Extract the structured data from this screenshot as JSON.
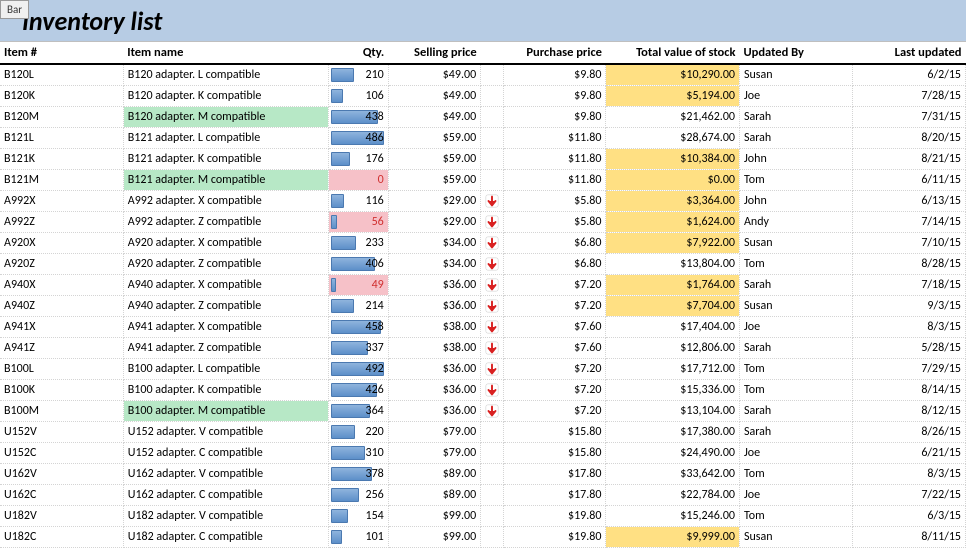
{
  "bar_label": "Bar",
  "title": "Inventory list",
  "columns": {
    "item": "Item #",
    "name": "Item name",
    "qty": "Qty.",
    "sell": "Selling price",
    "purch": "Purchase price",
    "total": "Total value of stock",
    "updated_by": "Updated By",
    "last_updated": "Last updated"
  },
  "style": {
    "max_qty": 500,
    "header_bg": "#b7cce4",
    "green_hl": "#b7e8c6",
    "yellow_hl": "#ffe083",
    "pink_bg": "#f6c1c8",
    "bar_gradient": [
      "#8fb4dd",
      "#5d8fc9"
    ],
    "red_text": "#d03030",
    "arrow_color": "#d92121",
    "title_fontsize": 26,
    "title_italic": true
  },
  "rows": [
    {
      "item": "B120L",
      "name": "B120 adapter. L compatible",
      "qty": 210,
      "sell": "$49.00",
      "purch": "$9.80",
      "total": "$10,290.00",
      "total_hl": true,
      "by": "Susan",
      "date": "6/2/15"
    },
    {
      "item": "B120K",
      "name": "B120 adapter. K compatible",
      "qty": 106,
      "sell": "$49.00",
      "purch": "$9.80",
      "total": "$5,194.00",
      "total_hl": true,
      "by": "Joe",
      "date": "7/28/15"
    },
    {
      "item": "B120M",
      "name": "B120 adapter. M compatible",
      "name_hl": true,
      "qty": 438,
      "sell": "$49.00",
      "purch": "$9.80",
      "total": "$21,462.00",
      "by": "Sarah",
      "date": "7/31/15"
    },
    {
      "item": "B121L",
      "name": "B121 adapter. L compatible",
      "qty": 486,
      "sell": "$59.00",
      "purch": "$11.80",
      "total": "$28,674.00",
      "by": "Sarah",
      "date": "8/20/15"
    },
    {
      "item": "B121K",
      "name": "B121 adapter. K compatible",
      "qty": 176,
      "sell": "$59.00",
      "purch": "$11.80",
      "total": "$10,384.00",
      "total_hl": true,
      "by": "John",
      "date": "8/21/15"
    },
    {
      "item": "B121M",
      "name": "B121 adapter. M compatible",
      "name_hl": true,
      "qty": 0,
      "qty_pink": true,
      "qty_red": true,
      "sell": "$59.00",
      "purch": "$11.80",
      "total": "$0.00",
      "total_hl": true,
      "by": "Tom",
      "date": "6/11/15"
    },
    {
      "item": "A992X",
      "name": "A992 adapter. X compatible",
      "qty": 116,
      "sell": "$29.00",
      "flag": true,
      "purch": "$5.80",
      "total": "$3,364.00",
      "total_hl": true,
      "by": "John",
      "date": "6/13/15"
    },
    {
      "item": "A992Z",
      "name": "A992 adapter. Z compatible",
      "qty": 56,
      "qty_pink": true,
      "qty_red": true,
      "sell": "$29.00",
      "flag": true,
      "purch": "$5.80",
      "total": "$1,624.00",
      "total_hl": true,
      "by": "Andy",
      "date": "7/14/15"
    },
    {
      "item": "A920X",
      "name": "A920 adapter. X compatible",
      "qty": 233,
      "sell": "$34.00",
      "flag": true,
      "purch": "$6.80",
      "total": "$7,922.00",
      "total_hl": true,
      "by": "Susan",
      "date": "7/10/15"
    },
    {
      "item": "A920Z",
      "name": "A920 adapter. Z compatible",
      "qty": 406,
      "sell": "$34.00",
      "flag": true,
      "purch": "$6.80",
      "total": "$13,804.00",
      "by": "Tom",
      "date": "8/28/15"
    },
    {
      "item": "A940X",
      "name": "A940 adapter. X compatible",
      "qty": 49,
      "qty_pink": true,
      "qty_red": true,
      "sell": "$36.00",
      "flag": true,
      "purch": "$7.20",
      "total": "$1,764.00",
      "total_hl": true,
      "by": "Sarah",
      "date": "7/18/15"
    },
    {
      "item": "A940Z",
      "name": "A940 adapter. Z compatible",
      "qty": 214,
      "sell": "$36.00",
      "flag": true,
      "purch": "$7.20",
      "total": "$7,704.00",
      "total_hl": true,
      "by": "Susan",
      "date": "9/3/15"
    },
    {
      "item": "A941X",
      "name": "A941 adapter. X compatible",
      "qty": 458,
      "sell": "$38.00",
      "flag": true,
      "purch": "$7.60",
      "total": "$17,404.00",
      "by": "Joe",
      "date": "8/3/15"
    },
    {
      "item": "A941Z",
      "name": "A941 adapter. Z compatible",
      "qty": 337,
      "sell": "$38.00",
      "flag": true,
      "purch": "$7.60",
      "total": "$12,806.00",
      "by": "Sarah",
      "date": "5/28/15"
    },
    {
      "item": "B100L",
      "name": "B100 adapter. L compatible",
      "qty": 492,
      "sell": "$36.00",
      "flag": true,
      "purch": "$7.20",
      "total": "$17,712.00",
      "by": "Tom",
      "date": "7/29/15"
    },
    {
      "item": "B100K",
      "name": "B100 adapter. K compatible",
      "qty": 426,
      "sell": "$36.00",
      "flag": true,
      "purch": "$7.20",
      "total": "$15,336.00",
      "by": "Tom",
      "date": "8/14/15"
    },
    {
      "item": "B100M",
      "name": "B100 adapter. M compatible",
      "name_hl": true,
      "qty": 364,
      "sell": "$36.00",
      "flag": true,
      "purch": "$7.20",
      "total": "$13,104.00",
      "by": "Sarah",
      "date": "8/12/15"
    },
    {
      "item": "U152V",
      "name": "U152 adapter. V compatible",
      "qty": 220,
      "sell": "$79.00",
      "purch": "$15.80",
      "total": "$17,380.00",
      "by": "Sarah",
      "date": "8/26/15"
    },
    {
      "item": "U152C",
      "name": "U152 adapter. C compatible",
      "qty": 310,
      "sell": "$79.00",
      "purch": "$15.80",
      "total": "$24,490.00",
      "by": "Joe",
      "date": "6/21/15"
    },
    {
      "item": "U162V",
      "name": "U162 adapter. V compatible",
      "qty": 378,
      "sell": "$89.00",
      "purch": "$17.80",
      "total": "$33,642.00",
      "by": "Tom",
      "date": "8/3/15"
    },
    {
      "item": "U162C",
      "name": "U162 adapter. C compatible",
      "qty": 256,
      "sell": "$89.00",
      "purch": "$17.80",
      "total": "$22,784.00",
      "by": "Joe",
      "date": "7/22/15"
    },
    {
      "item": "U182V",
      "name": "U182 adapter. V compatible",
      "qty": 154,
      "sell": "$99.00",
      "purch": "$19.80",
      "total": "$15,246.00",
      "by": "Tom",
      "date": "6/3/15"
    },
    {
      "item": "U182C",
      "name": "U182 adapter. C compatible",
      "qty": 101,
      "sell": "$99.00",
      "purch": "$19.80",
      "total": "$9,999.00",
      "total_hl": true,
      "by": "Susan",
      "date": "8/11/15"
    }
  ]
}
